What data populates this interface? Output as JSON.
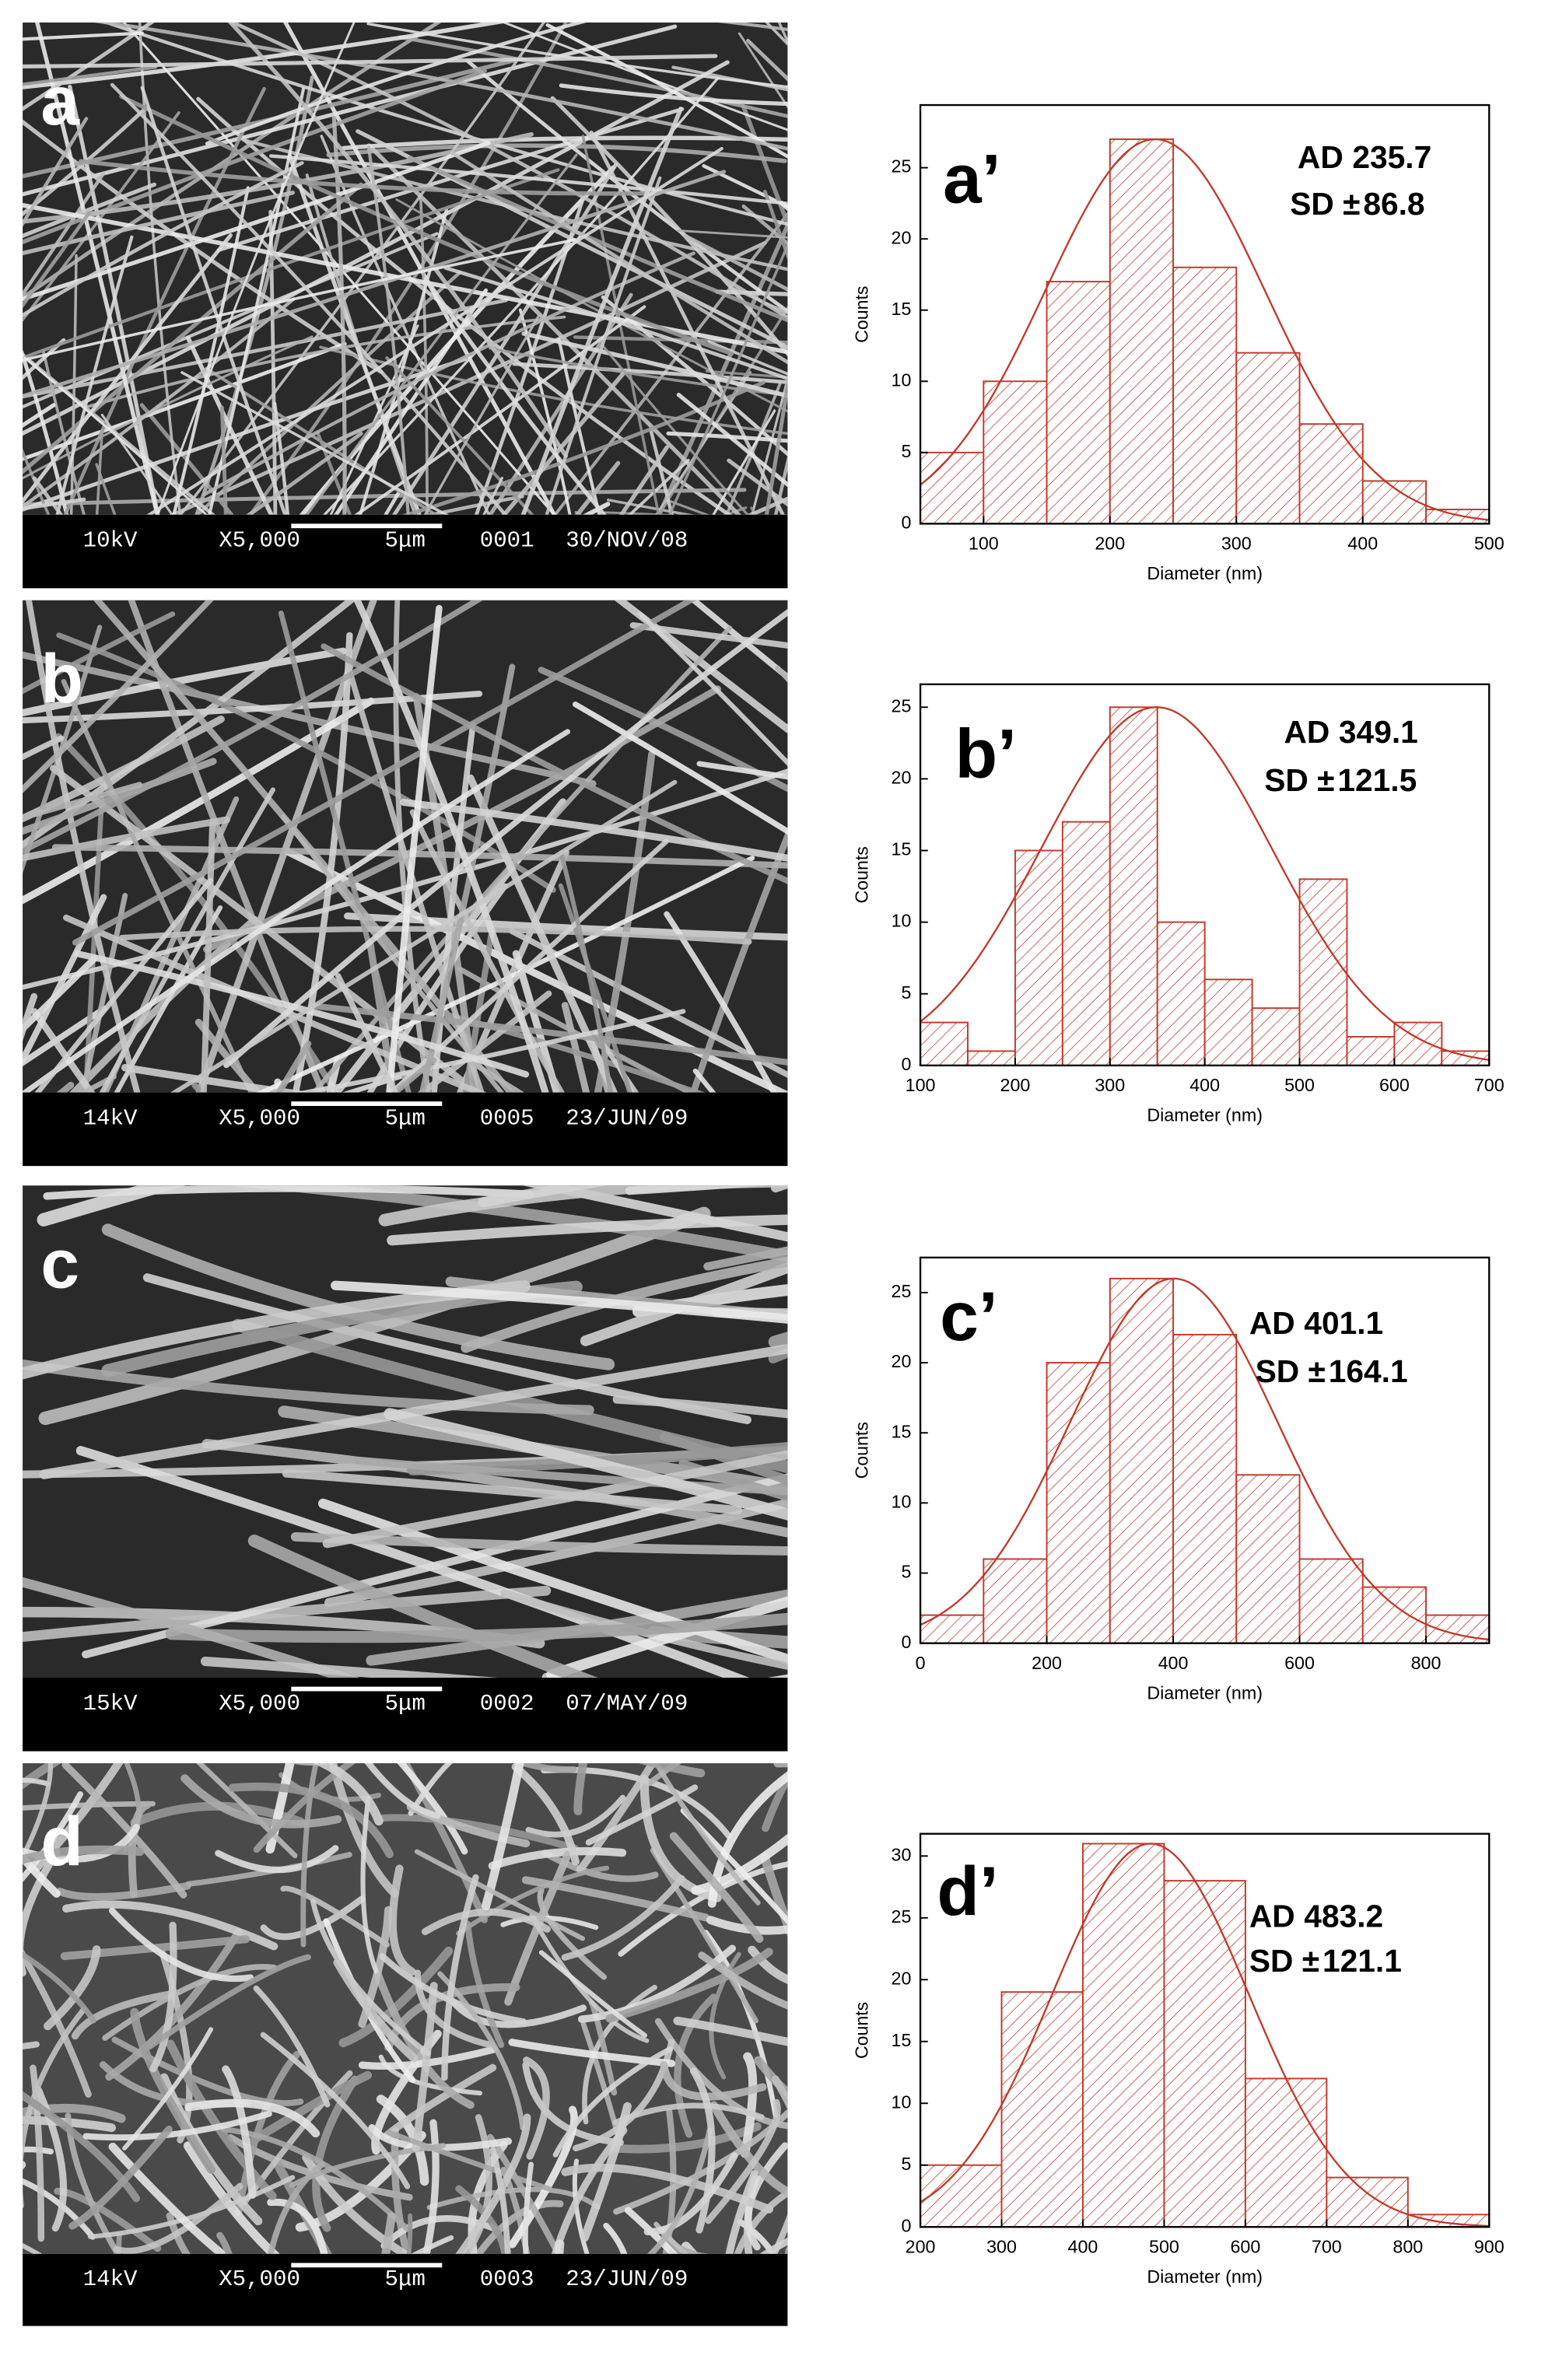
{
  "panels": [
    {
      "label": "a",
      "info": [
        "10kV",
        "X5,000",
        "5μm",
        "0001",
        "30/NOV/08"
      ]
    },
    {
      "label": "b",
      "info": [
        "14kV",
        "X5,000",
        "5μm",
        "0005",
        "23/JUN/09"
      ]
    },
    {
      "label": "c",
      "info": [
        "15kV",
        "X5,000",
        "5μm",
        "0002",
        "07/MAY/09"
      ]
    },
    {
      "label": "d",
      "info": [
        "14kV",
        "X5,000",
        "5μm",
        "0003",
        "23/JUN/09"
      ]
    }
  ],
  "chart_data": [
    {
      "type": "histogram",
      "panel_label": "a’",
      "ad_label": "AD",
      "ad": 235.7,
      "sd_label": "SD ±",
      "sd": 86.8,
      "fit_peak": 27,
      "xlabel": "Diameter (nm)",
      "ylabel": "Counts",
      "color": "#c0392b",
      "bins": [
        50,
        100,
        150,
        200,
        250,
        300,
        350,
        400,
        450,
        500
      ],
      "values": [
        5,
        10,
        17,
        27,
        18,
        12,
        7,
        3,
        1
      ],
      "xlim": [
        50,
        500
      ],
      "xticks": [
        100,
        200,
        300,
        400,
        500
      ],
      "ylim": [
        0,
        29.4
      ],
      "yticks": [
        0,
        5,
        10,
        15,
        20,
        25
      ]
    },
    {
      "type": "histogram",
      "panel_label": "b’",
      "ad_label": "AD",
      "ad": 349.1,
      "sd_label": "SD ±",
      "sd": 121.5,
      "fit_peak": 25,
      "xlabel": "Diameter (nm)",
      "ylabel": "Counts",
      "color": "#c0392b",
      "bins": [
        100,
        150,
        200,
        250,
        300,
        350,
        400,
        450,
        500,
        550,
        600,
        650,
        700
      ],
      "values": [
        3,
        1,
        15,
        17,
        25,
        10,
        6,
        4,
        13,
        2,
        3,
        1
      ],
      "xlim": [
        100,
        700
      ],
      "xticks": [
        100,
        200,
        300,
        400,
        500,
        600,
        700
      ],
      "ylim": [
        0,
        26.6
      ],
      "yticks": [
        0,
        5,
        10,
        15,
        20,
        25
      ]
    },
    {
      "type": "histogram",
      "panel_label": "c’",
      "ad_label": "AD",
      "ad": 401.1,
      "sd_label": "SD ±",
      "sd": 164.1,
      "fit_peak": 26,
      "xlabel": "Diameter (nm)",
      "ylabel": "Counts",
      "color": "#c0392b",
      "bins": [
        0,
        100,
        200,
        300,
        400,
        500,
        600,
        700,
        800,
        900
      ],
      "values": [
        2,
        6,
        20,
        26,
        22,
        12,
        6,
        4,
        2
      ],
      "xlim": [
        0,
        900
      ],
      "xticks": [
        0,
        200,
        400,
        600,
        800
      ],
      "ylim": [
        0,
        27.5
      ],
      "yticks": [
        0,
        5,
        10,
        15,
        20,
        25
      ]
    },
    {
      "type": "histogram",
      "panel_label": "d’",
      "ad_label": "AD",
      "ad": 483.2,
      "sd_label": "SD ±",
      "sd": 121.1,
      "fit_peak": 31,
      "xlabel": "Diameter (nm)",
      "ylabel": "Counts",
      "color": "#c0392b",
      "bins": [
        200,
        300,
        400,
        500,
        600,
        700,
        800,
        900
      ],
      "values": [
        5,
        19,
        31,
        28,
        12,
        4,
        1
      ],
      "xlim": [
        200,
        900
      ],
      "xticks": [
        200,
        300,
        400,
        500,
        600,
        700,
        800,
        900
      ],
      "ylim": [
        0,
        31.8
      ],
      "yticks": [
        0,
        5,
        10,
        15,
        20,
        25,
        30
      ]
    }
  ]
}
